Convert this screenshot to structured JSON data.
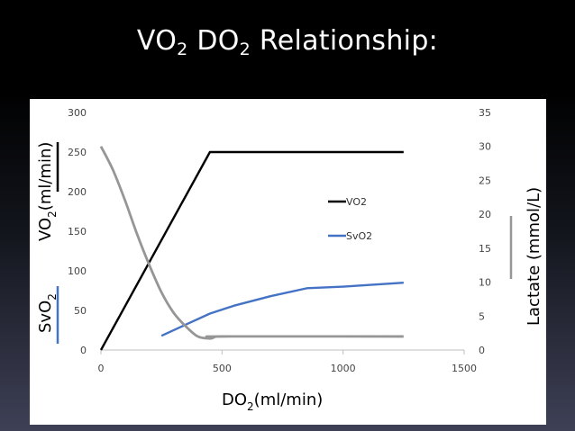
{
  "title": {
    "main1": "VO",
    "sub1": "2",
    "main2": " DO",
    "sub2": "2",
    "rest": " Relationship:"
  },
  "colors": {
    "vo2": "#000000",
    "svo2": "#4472c4",
    "lactate": "#969696"
  },
  "chart_data": {
    "type": "line",
    "x_ticks": [
      "0",
      "500",
      "1000",
      "1500"
    ],
    "x_tick_values": [
      0,
      500,
      1000,
      1500
    ],
    "xlim": [
      0,
      1500
    ],
    "y_left_ticks": [
      "0",
      "50",
      "100",
      "150",
      "200",
      "250",
      "300"
    ],
    "y_left_tick_values": [
      0,
      50,
      100,
      150,
      200,
      250,
      300
    ],
    "ylim_left": [
      0,
      300
    ],
    "y_right_ticks": [
      "0",
      "5",
      "10",
      "15",
      "20",
      "25",
      "30",
      "35"
    ],
    "y_right_tick_values": [
      0,
      5,
      10,
      15,
      20,
      25,
      30,
      35
    ],
    "ylim_right": [
      0,
      35
    ],
    "xlabel": {
      "main": "DO",
      "sub": "2",
      "rest": "(ml/min)"
    },
    "ylabel_left_top": {
      "main": "VO",
      "sub": "2",
      "rest": "(ml/min)"
    },
    "ylabel_left_bottom": {
      "main": "SvO",
      "sub": "2"
    },
    "ylabel_right": "Lactate (mmol/L)",
    "legend_position": "center-right",
    "series": [
      {
        "name": "VO2",
        "axis": "left",
        "color": "#000000",
        "x": [
          0,
          450,
          1250
        ],
        "y": [
          0,
          250,
          250
        ]
      },
      {
        "name": "SvO2",
        "axis": "left",
        "color": "#4472c4",
        "x": [
          250,
          350,
          450,
          550,
          700,
          850,
          1000,
          1100,
          1250
        ],
        "y": [
          18,
          32,
          46,
          56,
          68,
          78,
          80,
          82,
          85
        ]
      },
      {
        "name": "",
        "axis": "right",
        "color": "#969696",
        "x": [
          0,
          50,
          100,
          150,
          200,
          250,
          300,
          350,
          400,
          450,
          470,
          500,
          1250
        ],
        "y": [
          30,
          26.5,
          22,
          17,
          12.5,
          8.5,
          5.5,
          3.5,
          2.0,
          1.7,
          1.9,
          2.0,
          2.0
        ]
      }
    ]
  }
}
